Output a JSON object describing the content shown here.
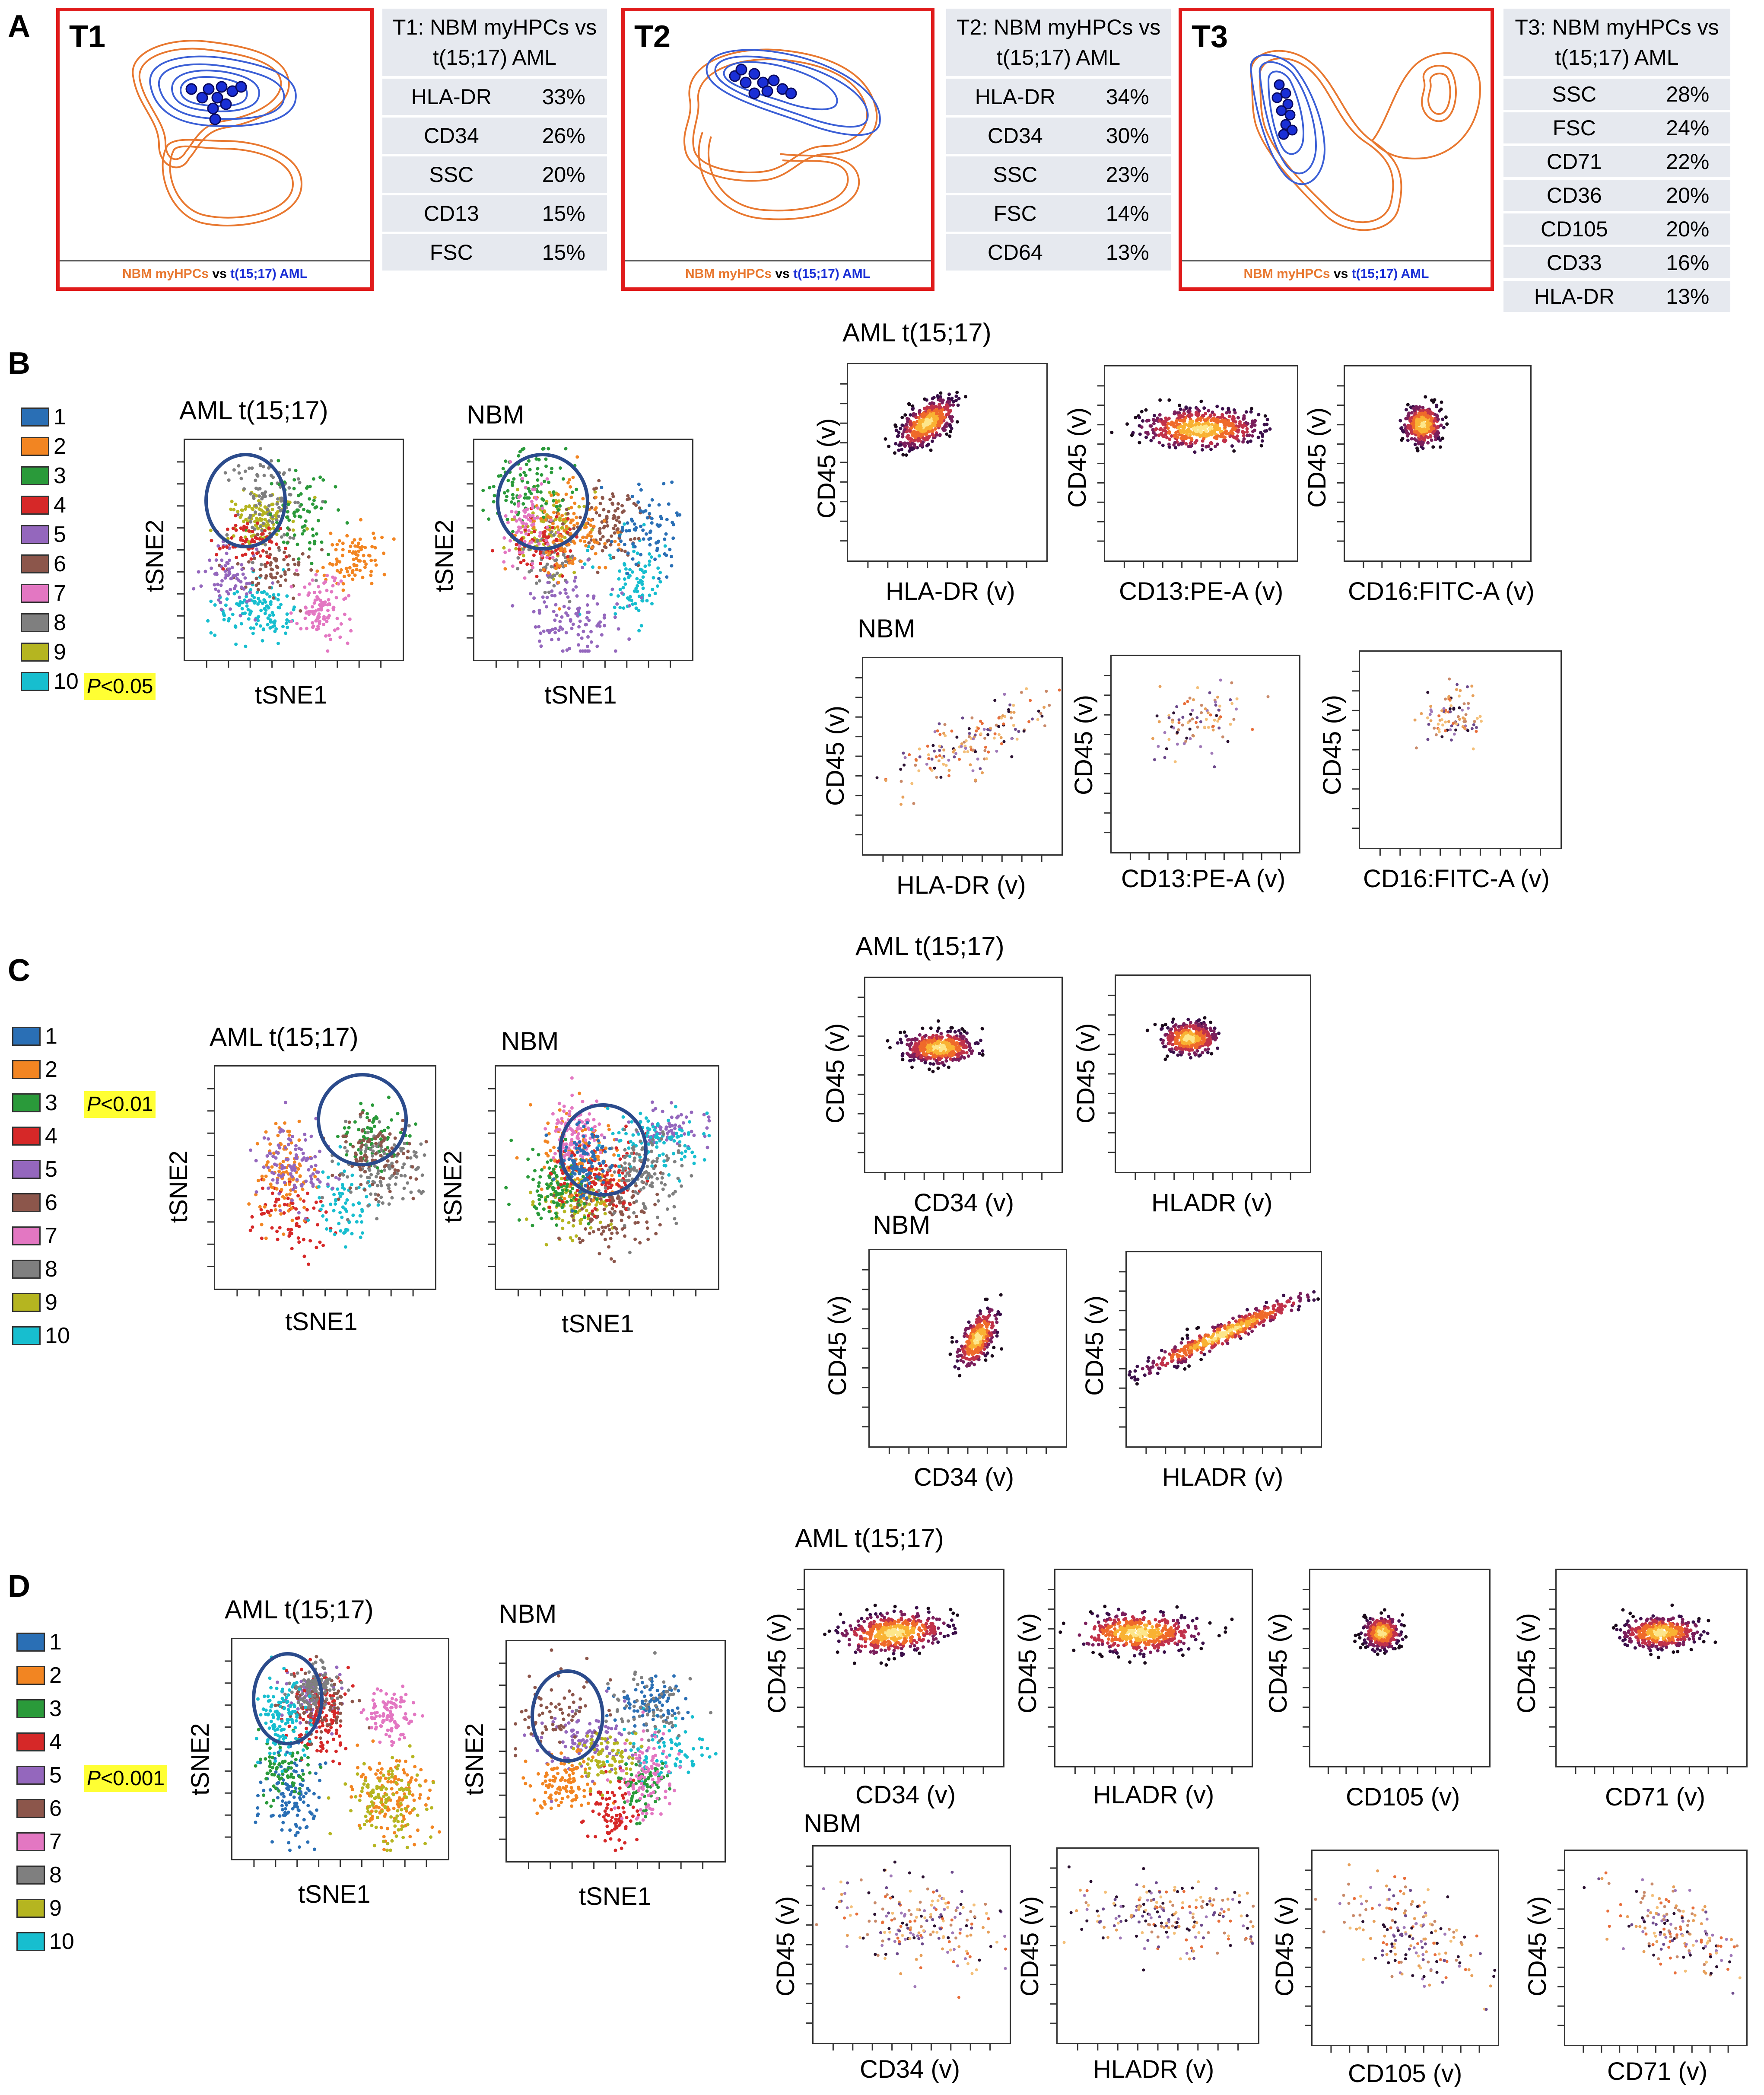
{
  "panels": {
    "A": {
      "letter": "A",
      "boxes": [
        {
          "label": "T1",
          "caption_nbm": "NBM myHPCs",
          "caption_vs": " vs ",
          "caption_aml": "t(15;17) AML",
          "table_title": "T1: NBM myHPCs vs t(15;17) AML",
          "rows": [
            [
              "HLA-DR",
              "33%"
            ],
            [
              "CD34",
              "26%"
            ],
            [
              "SSC",
              "20%"
            ],
            [
              "CD13",
              "15%"
            ],
            [
              "FSC",
              "15%"
            ]
          ]
        },
        {
          "label": "T2",
          "caption_nbm": "NBM myHPCs",
          "caption_vs": " vs ",
          "caption_aml": "t(15;17) AML",
          "table_title": "T2: NBM myHPCs vs t(15;17) AML",
          "rows": [
            [
              "HLA-DR",
              "34%"
            ],
            [
              "CD34",
              "30%"
            ],
            [
              "SSC",
              "23%"
            ],
            [
              "FSC",
              "14%"
            ],
            [
              "CD64",
              "13%"
            ]
          ]
        },
        {
          "label": "T3",
          "caption_nbm": "NBM myHPCs",
          "caption_vs": " vs ",
          "caption_aml": "t(15;17) AML",
          "table_title": "T3: NBM myHPCs vs t(15;17) AML",
          "rows": [
            [
              "SSC",
              "28%"
            ],
            [
              "FSC",
              "24%"
            ],
            [
              "CD71",
              "22%"
            ],
            [
              "CD36",
              "20%"
            ],
            [
              "CD105",
              "20%"
            ],
            [
              "CD33",
              "16%"
            ],
            [
              "HLA-DR",
              "13%"
            ]
          ]
        }
      ]
    },
    "B": {
      "letter": "B",
      "legend": [
        "1",
        "2",
        "3",
        "4",
        "5",
        "6",
        "7",
        "8",
        "9",
        "10"
      ],
      "pvalue": "P<0.05",
      "pvalue_italic": "P",
      "pvalue_rest": "<0.05",
      "tsne_titles": [
        "AML t(15;17)",
        "NBM"
      ],
      "tsne_x": "tSNE1",
      "tsne_y": "tSNE2",
      "scatter_title_aml": "AML t(15;17)",
      "scatter_title_nbm": "NBM",
      "scatter_y": "CD45 (v)",
      "scatter_x": [
        "HLA-DR (v)",
        "CD13:PE-A (v)",
        "CD16:FITC-A (v)"
      ]
    },
    "C": {
      "letter": "C",
      "legend": [
        "1",
        "2",
        "3",
        "4",
        "5",
        "6",
        "7",
        "8",
        "9",
        "10"
      ],
      "pvalue_italic": "P",
      "pvalue_rest": "<0.01",
      "tsne_titles": [
        "AML t(15;17)",
        "NBM"
      ],
      "tsne_x": "tSNE1",
      "tsne_y": "tSNE2",
      "scatter_title_aml": "AML t(15;17)",
      "scatter_title_nbm": "NBM",
      "scatter_y": "CD45 (v)",
      "scatter_x": [
        "CD34 (v)",
        "HLADR (v)"
      ]
    },
    "D": {
      "letter": "D",
      "legend": [
        "1",
        "2",
        "3",
        "4",
        "5",
        "6",
        "7",
        "8",
        "9",
        "10"
      ],
      "pvalue_italic": "P",
      "pvalue_rest": "<0.001",
      "tsne_titles": [
        "AML t(15;17)",
        "NBM"
      ],
      "tsne_x": "tSNE1",
      "tsne_y": "tSNE2",
      "scatter_title_aml": "AML t(15;17)",
      "scatter_title_nbm": "NBM",
      "scatter_y": "CD45 (v)",
      "scatter_x": [
        "CD34 (v)",
        "HLADR (v)",
        "CD105 (v)",
        "CD71 (v)"
      ]
    }
  },
  "colors": {
    "cluster": [
      "#2a6fb5",
      "#f28522",
      "#2a9a3a",
      "#d62828",
      "#9467bd",
      "#8c564b",
      "#e377c2",
      "#7f7f7f",
      "#b5b520",
      "#17becf"
    ],
    "contour_nbm": "#e87830",
    "contour_aml": "#1a2fd6",
    "circle": "#2b4b8c",
    "highlight": "#ffff33"
  }
}
